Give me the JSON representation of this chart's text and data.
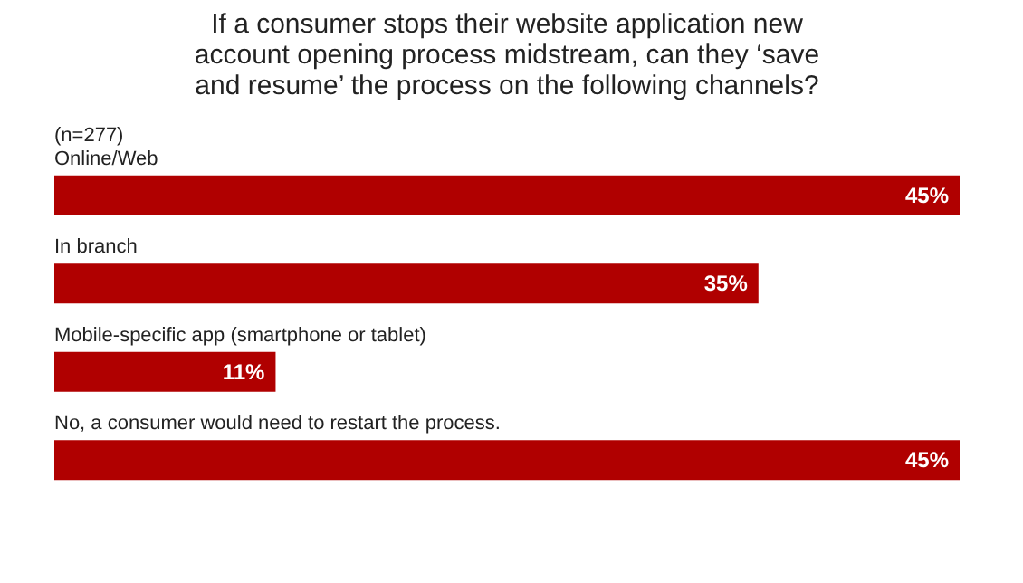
{
  "chart_data": {
    "type": "bar",
    "orientation": "horizontal",
    "title": [
      "If a consumer stops their website application new",
      "account opening process midstream, can they ‘save",
      "and resume’ the process on the following channels?"
    ],
    "categories": [
      "Online/Web",
      "In branch",
      "Mobile-specific app (smartphone or tablet)",
      "No, a consumer would need to restart the process."
    ],
    "values": [
      45,
      35,
      11,
      45
    ],
    "value_labels": [
      "45%",
      "35%",
      "11%",
      "45%"
    ],
    "color": "#b00000",
    "annotations": [
      "(n=277)"
    ],
    "grid": false,
    "tick_labels": false
  }
}
